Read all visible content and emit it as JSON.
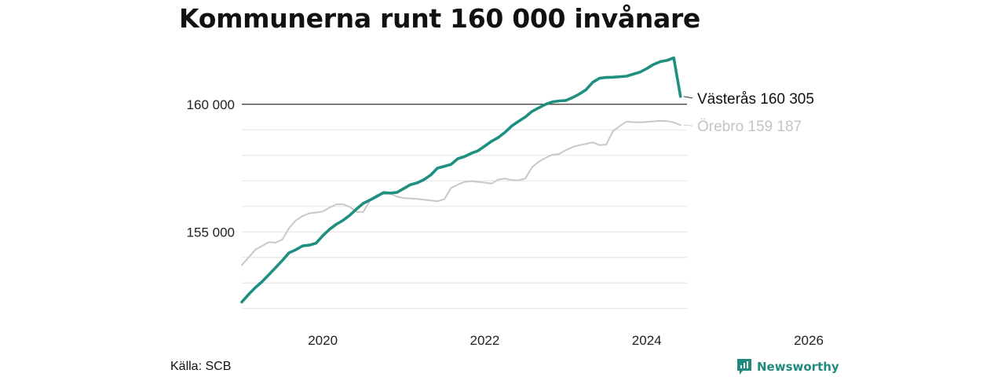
{
  "title": "Kommunerna runt 160 000 invånare",
  "source": "Källa: SCB",
  "brand": {
    "name": "Newsworthy",
    "icon": "newsworthy-logo-icon",
    "color": "#1f8a7d"
  },
  "chart_data": {
    "type": "line",
    "title": "Kommunerna runt 160 000 invånare",
    "xlabel": "",
    "ylabel": "",
    "xlim": [
      2019.0,
      2026.0
    ],
    "ylim": [
      151900,
      162300
    ],
    "grid": true,
    "x_ticks": [
      {
        "value": 2020,
        "label": "2020"
      },
      {
        "value": 2022,
        "label": "2022"
      },
      {
        "value": 2024,
        "label": "2024"
      },
      {
        "value": 2026,
        "label": "2026"
      }
    ],
    "y_ticks": [
      {
        "value": 155000,
        "label": "155 000"
      },
      {
        "value": 160000,
        "label": "160 000"
      }
    ],
    "y_gridlines": [
      152000,
      153000,
      154000,
      155000,
      156000,
      157000,
      158000,
      159000,
      160000
    ],
    "reference_line": {
      "value": 160000
    },
    "series": [
      {
        "name": "Örebro",
        "end_label": "Örebro 159 187",
        "color": "#c8c8c8",
        "emphasis": false,
        "x": [
          2019.0,
          2019.083,
          2019.167,
          2019.25,
          2019.333,
          2019.417,
          2019.5,
          2019.583,
          2019.667,
          2019.75,
          2019.833,
          2019.917,
          2020.0,
          2020.083,
          2020.167,
          2020.25,
          2020.333,
          2020.417,
          2020.5,
          2020.583,
          2020.667,
          2020.75,
          2020.833,
          2020.917,
          2021.0,
          2021.083,
          2021.167,
          2021.25,
          2021.333,
          2021.417,
          2021.5,
          2021.583,
          2021.667,
          2021.75,
          2021.833,
          2021.917,
          2022.0,
          2022.083,
          2022.167,
          2022.25,
          2022.333,
          2022.417,
          2022.5,
          2022.583,
          2022.667,
          2022.75,
          2022.833,
          2022.917,
          2023.0,
          2023.083,
          2023.167,
          2023.25,
          2023.333,
          2023.417,
          2023.5,
          2023.583,
          2023.667,
          2023.75,
          2023.833,
          2023.917,
          2024.0,
          2024.083,
          2024.167,
          2024.25,
          2024.333,
          2024.417
        ],
        "y": [
          153700,
          154000,
          154300,
          154450,
          154600,
          154580,
          154700,
          155150,
          155450,
          155620,
          155730,
          155760,
          155800,
          155950,
          156080,
          156080,
          155980,
          155780,
          155780,
          156230,
          156450,
          156480,
          156500,
          156380,
          156320,
          156310,
          156290,
          156260,
          156230,
          156200,
          156280,
          156720,
          156850,
          156960,
          156990,
          156960,
          156930,
          156890,
          157050,
          157090,
          157030,
          157020,
          157090,
          157530,
          157750,
          157900,
          158020,
          158050,
          158200,
          158320,
          158400,
          158450,
          158510,
          158400,
          158420,
          158950,
          159150,
          159320,
          159300,
          159290,
          159310,
          159330,
          159350,
          159340,
          159290,
          159187
        ]
      },
      {
        "name": "Västerås",
        "end_label": "Västerås 160 305",
        "color": "#1f9080",
        "emphasis": true,
        "x": [
          2019.0,
          2019.083,
          2019.167,
          2019.25,
          2019.333,
          2019.417,
          2019.5,
          2019.583,
          2019.667,
          2019.75,
          2019.833,
          2019.917,
          2020.0,
          2020.083,
          2020.167,
          2020.25,
          2020.333,
          2020.417,
          2020.5,
          2020.583,
          2020.667,
          2020.75,
          2020.833,
          2020.917,
          2021.0,
          2021.083,
          2021.167,
          2021.25,
          2021.333,
          2021.417,
          2021.5,
          2021.583,
          2021.667,
          2021.75,
          2021.833,
          2021.917,
          2022.0,
          2022.083,
          2022.167,
          2022.25,
          2022.333,
          2022.417,
          2022.5,
          2022.583,
          2022.667,
          2022.75,
          2022.833,
          2022.917,
          2023.0,
          2023.083,
          2023.167,
          2023.25,
          2023.333,
          2023.417,
          2023.5,
          2023.583,
          2023.667,
          2023.75,
          2023.833,
          2023.917,
          2024.0,
          2024.083,
          2024.167,
          2024.25,
          2024.333,
          2024.417
        ],
        "y": [
          152250,
          152550,
          152820,
          153050,
          153320,
          153600,
          153880,
          154180,
          154300,
          154450,
          154480,
          154560,
          154850,
          155100,
          155300,
          155450,
          155650,
          155900,
          156120,
          156250,
          156390,
          156540,
          156520,
          156550,
          156700,
          156850,
          156920,
          157050,
          157230,
          157500,
          157570,
          157640,
          157870,
          157950,
          158080,
          158180,
          158360,
          158550,
          158700,
          158900,
          159150,
          159330,
          159500,
          159720,
          159860,
          160000,
          160090,
          160130,
          160150,
          160260,
          160400,
          160570,
          160860,
          161020,
          161050,
          161060,
          161080,
          161100,
          161180,
          161260,
          161400,
          161560,
          161670,
          161720,
          161820,
          160305
        ]
      }
    ]
  }
}
